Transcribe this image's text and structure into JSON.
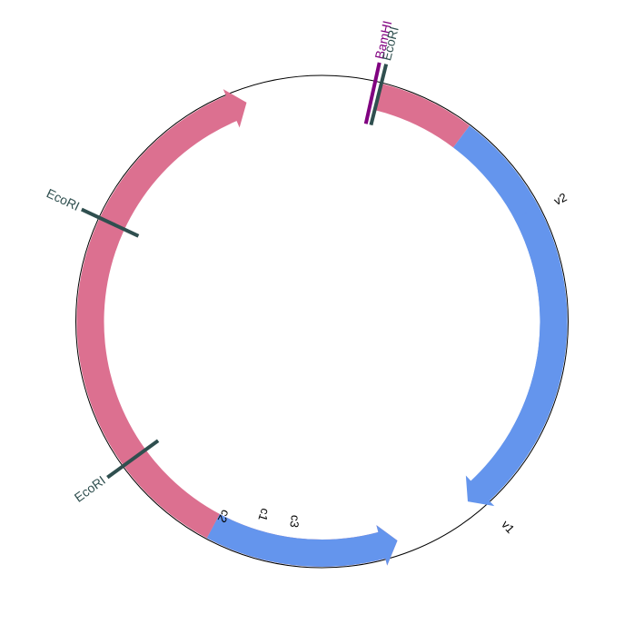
{
  "colors": {
    "backbone": "#000000",
    "pink": "#dc7090",
    "blue": "#6495ed",
    "bamhi": "#800080",
    "ecori": "#2f4f4f"
  },
  "features": [
    {
      "name": "pink-arc-top-right",
      "color": "pink",
      "start_deg": 14,
      "end_deg": 37,
      "arrow": "none",
      "label": ""
    },
    {
      "name": "v2",
      "color": "blue",
      "start_deg": 37,
      "end_deg": 120,
      "arrow": "none",
      "label": "v2"
    },
    {
      "name": "v1",
      "color": "blue",
      "start_deg": 62,
      "end_deg": 141,
      "arrow": "end",
      "label": "v1"
    },
    {
      "name": "c3",
      "color": "pink",
      "start_deg": 161,
      "end_deg": 208,
      "arrow": "start",
      "label": "c3"
    },
    {
      "name": "c1",
      "color": "blue",
      "start_deg": 161,
      "end_deg": 208,
      "arrow": "start",
      "label": "c1"
    },
    {
      "name": "c2",
      "color": "pink",
      "start_deg": 208,
      "end_deg": 341,
      "arrow": "end",
      "label": "c2"
    }
  ],
  "feature_labels": [
    {
      "text": "v2",
      "angle_deg": 63,
      "radius": 295
    },
    {
      "text": "v1",
      "angle_deg": 138,
      "radius": 305
    },
    {
      "text": "c3",
      "angle_deg": 188,
      "radius": 222
    },
    {
      "text": "c1",
      "angle_deg": 197,
      "radius": 222
    },
    {
      "text": "c2",
      "angle_deg": 207,
      "radius": 240
    }
  ],
  "sites": [
    {
      "name": "BamHI",
      "angle_deg": 12.5,
      "color": "bamhi",
      "label": "BamHI"
    },
    {
      "name": "EcoRI",
      "angle_deg": 14.0,
      "color": "ecori",
      "label": "EcoRI"
    },
    {
      "name": "EcoRI",
      "angle_deg": 295,
      "color": "ecori",
      "label": "EcoRI"
    },
    {
      "name": "EcoRI",
      "angle_deg": 234,
      "color": "ecori",
      "label": "EcoRI"
    }
  ]
}
